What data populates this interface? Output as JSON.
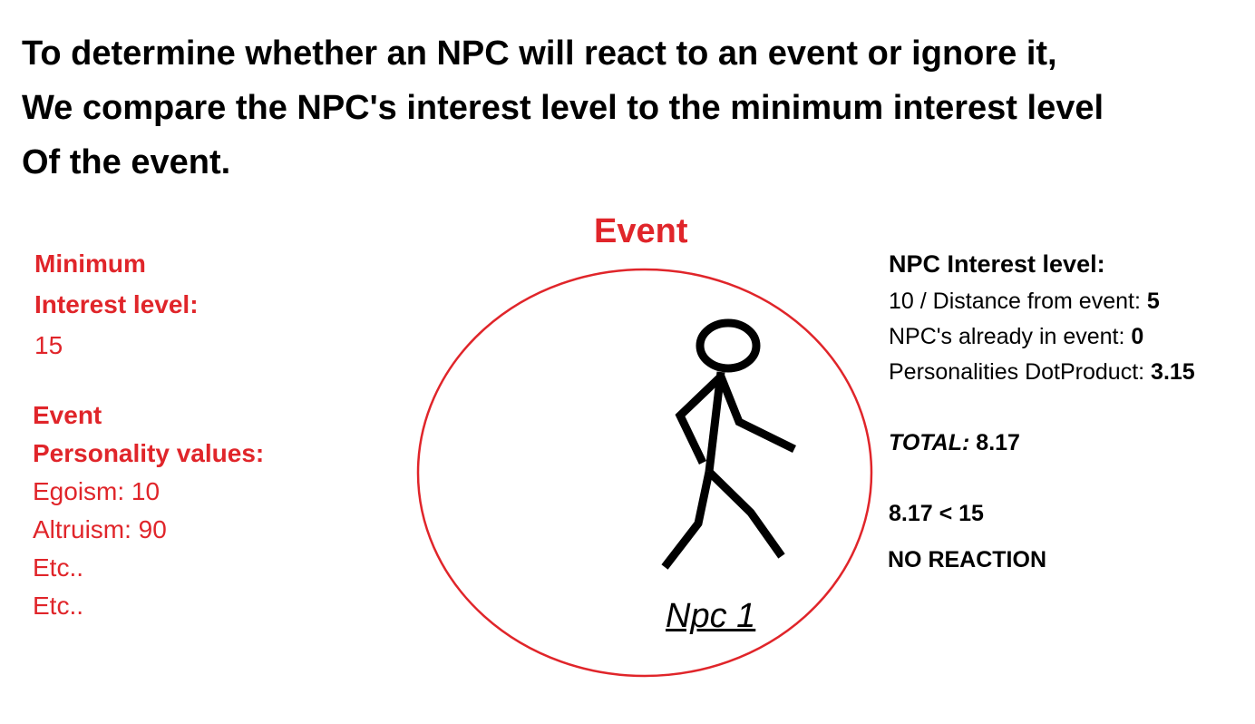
{
  "title": {
    "lines": [
      "To determine whether an NPC will react to an event or ignore it,",
      "We compare the NPC's interest level to the minimum interest level",
      "Of the event."
    ]
  },
  "event_label": "Event",
  "minimum_interest": {
    "heading": [
      "Minimum",
      "Interest level:"
    ],
    "value": "15"
  },
  "event_personality": {
    "heading": [
      "Event",
      "Personality values:"
    ],
    "items": [
      "Egoism: 10",
      "Altruism: 90",
      "Etc..",
      "Etc.."
    ]
  },
  "npc_interest": {
    "heading": "NPC Interest level:",
    "rows": [
      {
        "label": "10 / Distance from event:",
        "value": "5"
      },
      {
        "label": "NPC's already in event:",
        "value": "0"
      },
      {
        "label": "Personalities DotProduct:",
        "value": "3.15"
      }
    ],
    "total": {
      "label": "TOTAL:",
      "value": "8.17"
    },
    "comparison": "8.17 < 15",
    "result": "NO REACTION"
  },
  "npc_label": "Npc 1"
}
